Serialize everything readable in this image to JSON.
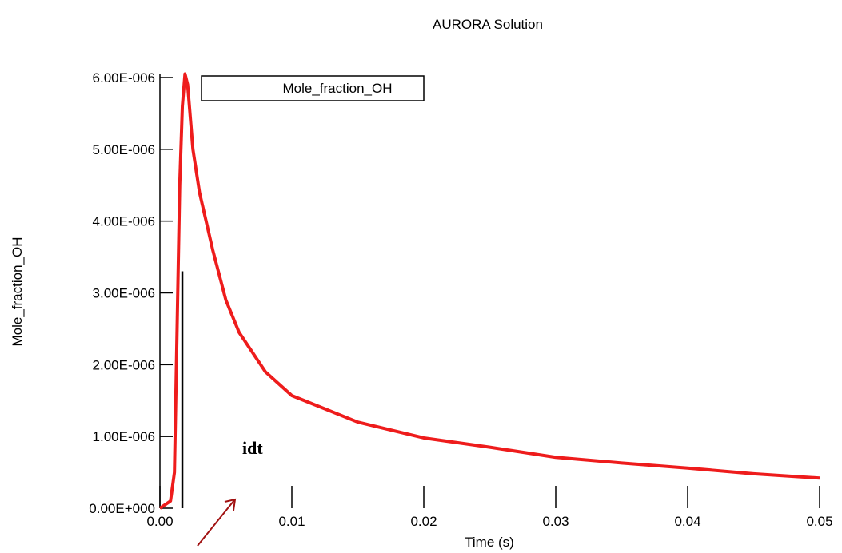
{
  "chart_data": {
    "type": "line",
    "title": "AURORA Solution",
    "xlabel": "Time (s)",
    "ylabel": "Mole_fraction_OH",
    "x": [
      0,
      0.0008,
      0.0011,
      0.0013,
      0.0015,
      0.0017,
      0.0019,
      0.0021,
      0.0025,
      0.003,
      0.004,
      0.005,
      0.006,
      0.008,
      0.01,
      0.015,
      0.02,
      0.025,
      0.03,
      0.035,
      0.04,
      0.045,
      0.05
    ],
    "series": [
      {
        "name": "Mole_fraction_OH",
        "color": "#ee1c1c",
        "values": [
          0,
          1e-07,
          5e-07,
          2.5e-06,
          4.5e-06,
          5.6e-06,
          6.05e-06,
          5.9e-06,
          5e-06,
          4.4e-06,
          3.6e-06,
          2.9e-06,
          2.45e-06,
          1.9e-06,
          1.57e-06,
          1.2e-06,
          9.8e-07,
          8.5e-07,
          7.1e-07,
          6.3e-07,
          5.6e-07,
          4.8e-07,
          4.2e-07
        ]
      }
    ],
    "xlim": [
      0,
      0.05
    ],
    "xticks": [
      {
        "value": 0,
        "label": "0.00"
      },
      0.01,
      0.02,
      0.03,
      0.04,
      0.05
    ],
    "ylim": [
      0,
      6e-06
    ],
    "yticks": [
      {
        "value": 0,
        "label": "0.00E+000"
      },
      {
        "value": 1e-06,
        "label": "1.00E-006"
      },
      {
        "value": 2e-06,
        "label": "2.00E-006"
      },
      {
        "value": 3e-06,
        "label": "3.00E-006"
      },
      {
        "value": 4e-06,
        "label": "4.00E-006"
      },
      {
        "value": 5e-06,
        "label": "5.00E-006"
      },
      {
        "value": 6e-06,
        "label": "6.00E-006"
      }
    ],
    "annotation": {
      "text": "idt",
      "x": 0.0017,
      "color": "#c00000"
    }
  }
}
